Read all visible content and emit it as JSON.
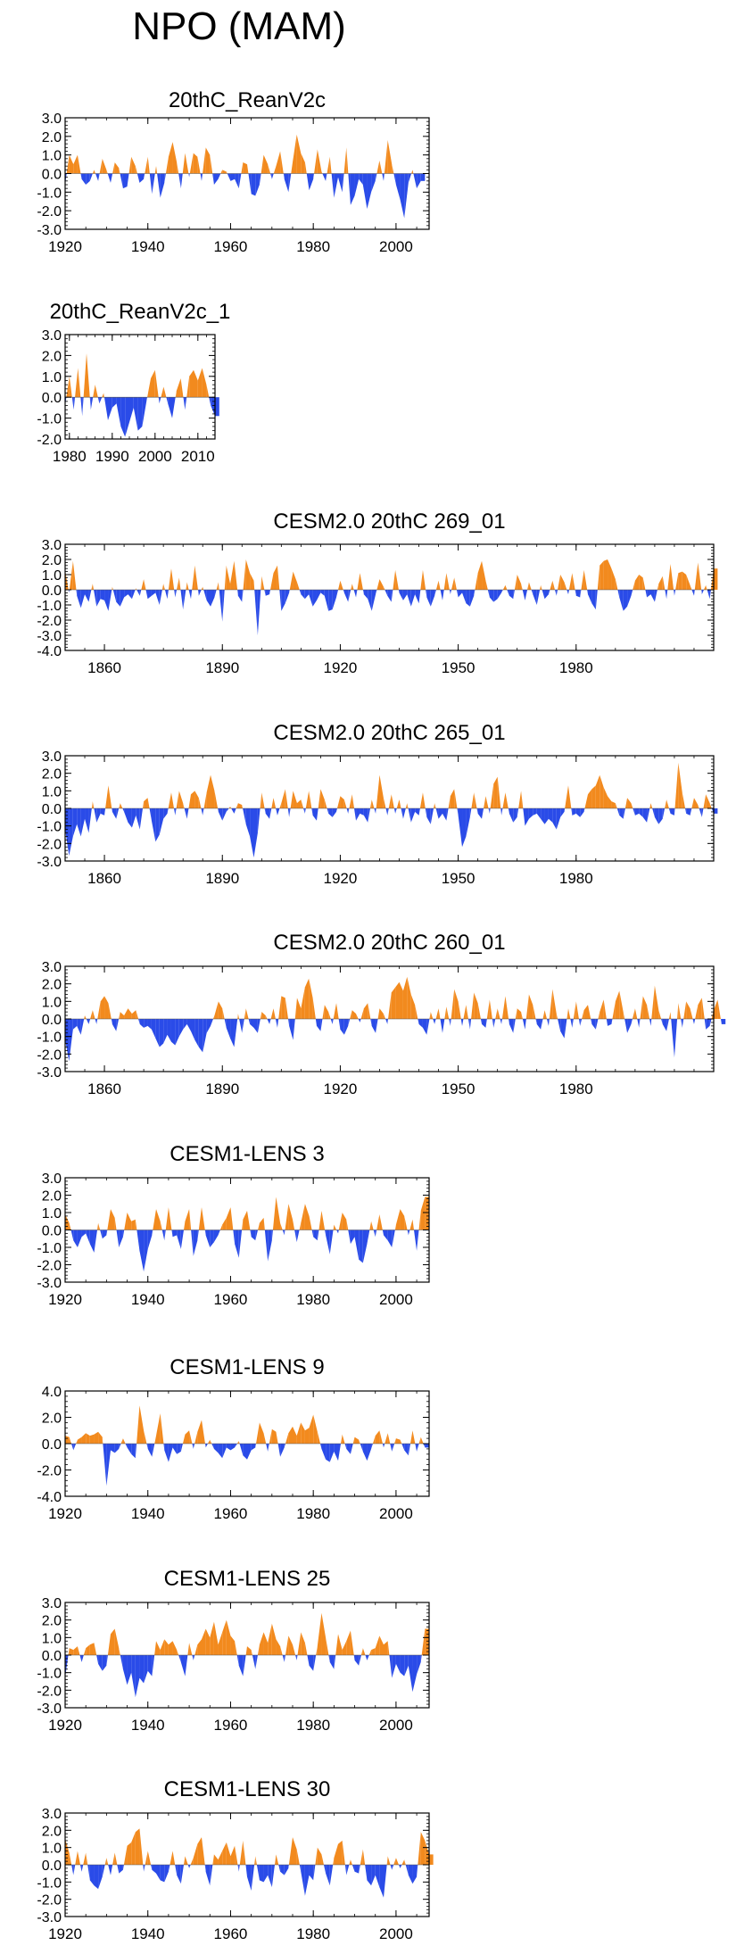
{
  "figure_title": "NPO (MAM)",
  "colors": {
    "positive": "#f28a1e",
    "negative": "#2a4be8",
    "axis": "#000000"
  },
  "chart_data": [
    {
      "type": "area",
      "title": "20thC_ReanV2c",
      "xlim": [
        1920,
        2008
      ],
      "ylim": [
        -3,
        3
      ],
      "yticks": [
        -3,
        -2,
        -1,
        0,
        1,
        2,
        3
      ],
      "ytick_labels": [
        "-3.0",
        "-2.0",
        "-1.0",
        "0.0",
        "1.0",
        "2.0",
        "3.0"
      ],
      "xticks": [
        1920,
        1940,
        1960,
        1980,
        2000
      ],
      "xtick_labels": [
        "1920",
        "1940",
        "1960",
        "1980",
        "2000"
      ],
      "x_start": 1920,
      "values": [
        -0.6,
        1.0,
        0.5,
        1.0,
        -0.3,
        -0.6,
        -0.4,
        0.2,
        -0.4,
        0.8,
        0.2,
        -0.5,
        0.6,
        0.3,
        -0.8,
        -0.7,
        0.9,
        0.4,
        -0.5,
        -0.3,
        0.9,
        -1.1,
        0.4,
        -1.3,
        -0.5,
        0.9,
        1.7,
        0.6,
        -0.8,
        1.1,
        -0.2,
        1.1,
        0.9,
        -0.4,
        1.4,
        1.0,
        -0.6,
        -0.3,
        0.2,
        0.1,
        -0.4,
        -0.3,
        -0.8,
        0.6,
        0.5,
        -1.1,
        -1.2,
        -0.6,
        1.0,
        0.5,
        -0.3,
        0.4,
        1.2,
        -0.3,
        -1.0,
        0.6,
        2.1,
        1.1,
        0.6,
        -0.9,
        -0.3,
        1.3,
        0.1,
        -0.4,
        0.9,
        -1.3,
        -0.2,
        -1.0,
        1.4,
        -1.7,
        -1.2,
        -0.3,
        -0.6,
        -1.9,
        -1.0,
        -0.4,
        0.7,
        -0.4,
        1.8,
        0.5,
        -0.6,
        -1.4,
        -2.4,
        -0.5,
        0.2,
        -0.8,
        -0.4
      ]
    },
    {
      "type": "area",
      "title": "20thC_ReanV2c_1",
      "xlim": [
        1979,
        2014
      ],
      "ylim": [
        -2,
        3
      ],
      "yticks": [
        -2,
        -1,
        0,
        1,
        2,
        3
      ],
      "ytick_labels": [
        "-2.0",
        "-1.0",
        "0.0",
        "1.0",
        "2.0",
        "3.0"
      ],
      "xticks": [
        1980,
        1990,
        2000,
        2010
      ],
      "xtick_labels": [
        "1980",
        "1990",
        "2000",
        "2010"
      ],
      "x_start": 1979,
      "values": [
        -0.4,
        1.0,
        -0.6,
        1.4,
        -0.9,
        2.1,
        -0.6,
        0.6,
        -0.3,
        0.2,
        -1.1,
        -0.5,
        -0.3,
        -1.4,
        -1.9,
        -1.2,
        -0.5,
        -1.6,
        -1.4,
        -0.2,
        0.9,
        1.3,
        -0.3,
        0.5,
        -0.3,
        -1.0,
        0.3,
        0.9,
        -0.6,
        1.0,
        1.3,
        0.8,
        1.4,
        0.6,
        -0.4,
        -0.9
      ]
    },
    {
      "type": "area",
      "title": "CESM2.0 20thC 269_01",
      "xlim": [
        1850,
        2015
      ],
      "ylim": [
        -4,
        3
      ],
      "yticks": [
        -4,
        -3,
        -2,
        -1,
        0,
        1,
        2,
        3
      ],
      "ytick_labels": [
        "-4.0",
        "-3.0",
        "-2.0",
        "-1.0",
        "0.0",
        "1.0",
        "2.0",
        "3.0"
      ],
      "xticks": [
        1860,
        1890,
        1920,
        1950,
        1980
      ],
      "xtick_labels": [
        "1860",
        "1890",
        "1920",
        "1950",
        "1980"
      ],
      "x_start": 1850,
      "values": [
        1.3,
        -0.2,
        1.9,
        -0.4,
        -1.2,
        -0.3,
        -0.8,
        0.4,
        -1.1,
        -0.6,
        -0.7,
        -1.4,
        0.2,
        -0.8,
        -1.1,
        -0.5,
        -0.3,
        -0.6,
        0.1,
        -0.4,
        0.7,
        -0.6,
        -0.4,
        -0.2,
        -1.0,
        0.4,
        -0.6,
        1.4,
        -0.5,
        0.8,
        -1.3,
        0.5,
        -0.6,
        1.6,
        -0.4,
        0.2,
        -0.7,
        -1.1,
        -0.5,
        0.5,
        -2.1,
        1.6,
        0.4,
        1.9,
        -0.4,
        -0.8,
        2.0,
        1.1,
        0.6,
        -3.0,
        0.9,
        -0.4,
        -0.3,
        1.1,
        1.6,
        -1.4,
        -0.9,
        -0.2,
        1.2,
        0.5,
        -0.3,
        -0.6,
        -0.3,
        -1.1,
        -0.7,
        -0.2,
        -0.4,
        -1.4,
        -1.3,
        -0.5,
        0.6,
        -0.2,
        -0.8,
        0.4,
        -0.5,
        1.1,
        -0.3,
        -0.6,
        -1.4,
        -0.3,
        0.7,
        0.2,
        -0.4,
        -0.8,
        1.3,
        -0.2,
        -0.7,
        -0.3,
        -1.1,
        -0.3,
        -0.9,
        1.3,
        -0.5,
        -1.1,
        -0.4,
        0.6,
        -0.7,
        1.1,
        -0.3,
        0.8,
        -0.5,
        -0.2,
        -0.9,
        -1.1,
        -0.4,
        1.1,
        1.9,
        0.6,
        -0.5,
        -0.8,
        -0.6,
        -0.2,
        0.3,
        -0.4,
        -0.6,
        1.0,
        0.4,
        -0.7,
        0.5,
        -0.3,
        -1.0,
        0.3,
        -0.6,
        -0.3,
        0.6,
        -0.4,
        1.0,
        0.5,
        -0.3,
        1.1,
        -0.4,
        -0.5,
        1.3,
        -0.3,
        -0.9,
        -1.3,
        1.6,
        1.9,
        2.0,
        1.4,
        0.7,
        -0.5,
        -1.4,
        -1.1,
        -0.4,
        0.6,
        1.0,
        0.8,
        -0.5,
        -0.3,
        -0.8,
        0.4,
        0.9,
        -0.6,
        1.7,
        -0.4,
        1.1,
        1.2,
        1.0,
        0.3,
        -0.4,
        1.8,
        -0.3,
        0.3,
        -0.6,
        1.4
      ]
    },
    {
      "type": "area",
      "title": "CESM2.0 20thC 265_01",
      "xlim": [
        1850,
        2015
      ],
      "ylim": [
        -3,
        3
      ],
      "yticks": [
        -3,
        -2,
        -1,
        0,
        1,
        2,
        3
      ],
      "ytick_labels": [
        "-3.0",
        "-2.0",
        "-1.0",
        "0.0",
        "1.0",
        "2.0",
        "3.0"
      ],
      "xticks": [
        1860,
        1890,
        1920,
        1950,
        1980
      ],
      "xtick_labels": [
        "1860",
        "1890",
        "1920",
        "1950",
        "1980"
      ],
      "x_start": 1850,
      "values": [
        -1.2,
        -2.7,
        -1.6,
        -0.9,
        -1.6,
        -0.6,
        -1.4,
        0.4,
        -0.8,
        -0.3,
        -0.4,
        1.3,
        -0.2,
        -0.6,
        0.3,
        -0.2,
        -0.8,
        -1.1,
        -0.4,
        -1.2,
        0.4,
        0.6,
        -0.7,
        -1.9,
        -1.5,
        -0.6,
        -0.3,
        0.9,
        -0.4,
        1.0,
        0.3,
        -0.6,
        0.8,
        1.0,
        0.6,
        -0.4,
        0.9,
        1.9,
        1.0,
        -0.2,
        -0.7,
        -0.2,
        0.1,
        -0.3,
        0.3,
        0.2,
        -0.9,
        -1.6,
        -2.8,
        -1.4,
        0.9,
        -0.3,
        -0.6,
        0.6,
        -0.4,
        0.3,
        1.1,
        -0.5,
        1.0,
        0.3,
        0.5,
        -0.3,
        1.0,
        -0.4,
        -0.7,
        1.1,
        0.5,
        -0.3,
        -0.5,
        -0.2,
        0.7,
        0.5,
        -0.3,
        0.8,
        -0.7,
        -0.3,
        -0.4,
        -0.8,
        0.5,
        -0.3,
        1.9,
        0.6,
        -0.4,
        0.8,
        -0.3,
        0.5,
        -0.6,
        0.3,
        -0.8,
        -0.2,
        -0.4,
        0.9,
        -0.5,
        -0.9,
        0.3,
        -0.6,
        -0.3,
        -0.7,
        0.7,
        1.1,
        -0.4,
        -2.2,
        -1.6,
        -0.5,
        0.9,
        -0.3,
        -0.6,
        0.7,
        -0.3,
        1.4,
        1.8,
        -0.4,
        0.9,
        -0.3,
        -0.8,
        -0.5,
        1.0,
        -1.0,
        -0.6,
        -0.4,
        -0.3,
        -0.6,
        -0.9,
        -0.6,
        -0.8,
        -1.2,
        -0.5,
        -0.2,
        1.3,
        -0.4,
        -0.3,
        -0.5,
        -0.2,
        0.8,
        1.1,
        1.3,
        1.9,
        1.2,
        0.7,
        0.4,
        0.3,
        -0.4,
        -0.6,
        0.6,
        0.3,
        -0.4,
        -0.3,
        -0.5,
        -0.8,
        0.3,
        -0.5,
        -0.9,
        -0.6,
        0.5,
        -0.3,
        -0.4,
        2.6,
        0.9,
        -0.3,
        -0.4,
        0.6,
        0.2,
        -0.5,
        0.8,
        0.3,
        -0.3
      ]
    },
    {
      "type": "area",
      "title": "CESM2.0 20thC 260_01",
      "xlim": [
        1850,
        2015
      ],
      "ylim": [
        -3,
        3
      ],
      "yticks": [
        -3,
        -2,
        -1,
        0,
        1,
        2,
        3
      ],
      "ytick_labels": [
        "-3.0",
        "-2.0",
        "-1.0",
        "0.0",
        "1.0",
        "2.0",
        "3.0"
      ],
      "xticks": [
        1860,
        1890,
        1920,
        1950,
        1980
      ],
      "xtick_labels": [
        "1860",
        "1890",
        "1920",
        "1950",
        "1980"
      ],
      "x_start": 1850,
      "values": [
        -1.2,
        -2.4,
        -0.6,
        -0.4,
        -0.9,
        0.2,
        -0.3,
        0.5,
        -0.3,
        1.0,
        1.3,
        0.9,
        -0.3,
        -0.7,
        0.4,
        0.2,
        0.6,
        0.3,
        0.5,
        -0.3,
        -0.5,
        -0.4,
        -0.6,
        -1.1,
        -1.6,
        -1.4,
        -0.9,
        -1.3,
        -1.5,
        -1.0,
        -0.6,
        -0.3,
        -0.7,
        -1.2,
        -1.6,
        -1.9,
        -0.8,
        -0.4,
        0.2,
        1.0,
        0.6,
        -0.5,
        -1.1,
        -1.6,
        0.3,
        -0.8,
        0.6,
        -0.3,
        -0.5,
        -0.8,
        0.4,
        0.2,
        -0.3,
        0.6,
        -0.5,
        1.3,
        1.2,
        -0.4,
        -1.2,
        1.2,
        0.6,
        1.8,
        2.3,
        1.2,
        -0.4,
        -0.7,
        0.8,
        0.4,
        -0.3,
        0.9,
        -0.6,
        -0.9,
        -0.4,
        0.5,
        0.3,
        -0.2,
        0.6,
        0.9,
        -0.4,
        -0.8,
        0.6,
        0.3,
        -0.3,
        1.5,
        1.8,
        2.1,
        1.6,
        2.4,
        1.4,
        0.8,
        -0.3,
        -0.5,
        -0.9,
        0.4,
        -0.3,
        0.6,
        -0.8,
        0.7,
        -0.4,
        1.7,
        1.0,
        -0.4,
        0.8,
        -0.6,
        1.5,
        0.9,
        -0.3,
        -0.5,
        1.1,
        -0.5,
        0.6,
        -0.3,
        1.3,
        -0.3,
        -0.8,
        0.6,
        0.4,
        -0.6,
        1.4,
        0.8,
        -0.3,
        -0.6,
        0.5,
        -0.4,
        1.7,
        0.3,
        -0.7,
        -1.1,
        0.6,
        -0.5,
        1.0,
        -0.4,
        0.5,
        0.8,
        -0.3,
        -0.6,
        0.4,
        1.1,
        -0.4,
        -0.3,
        1.0,
        1.6,
        0.4,
        -0.8,
        -0.3,
        0.6,
        -0.5,
        1.3,
        0.8,
        -0.4,
        1.9,
        0.5,
        -0.3,
        -0.7,
        0.4,
        -2.2,
        0.9,
        -0.5,
        1.0,
        0.6,
        -0.3,
        0.8,
        1.2,
        -0.6,
        -0.4,
        0.5,
        1.1,
        -0.3
      ]
    },
    {
      "type": "area",
      "title": "CESM1-LENS 3",
      "xlim": [
        1920,
        2008
      ],
      "ylim": [
        -3,
        3
      ],
      "yticks": [
        -3,
        -2,
        -1,
        0,
        1,
        2,
        3
      ],
      "ytick_labels": [
        "-3.0",
        "-2.0",
        "-1.0",
        "0.0",
        "1.0",
        "2.0",
        "3.0"
      ],
      "xticks": [
        1920,
        1940,
        1960,
        1980,
        2000
      ],
      "xtick_labels": [
        "1920",
        "1940",
        "1960",
        "1980",
        "2000"
      ],
      "x_start": 1920,
      "values": [
        0.9,
        0.4,
        -0.6,
        -1.0,
        -0.4,
        -0.2,
        -0.8,
        -1.3,
        0.4,
        -0.5,
        -0.3,
        1.2,
        0.7,
        -1.0,
        -0.4,
        1.0,
        0.5,
        0.6,
        -1.2,
        -2.4,
        -1.1,
        -0.3,
        1.2,
        0.5,
        -0.6,
        1.3,
        -0.4,
        -0.3,
        -1.1,
        0.5,
        1.2,
        -1.5,
        -0.6,
        1.3,
        -0.3,
        -1.0,
        -0.7,
        -0.3,
        0.3,
        0.7,
        1.3,
        -0.8,
        -1.6,
        0.6,
        1.1,
        -0.4,
        -0.6,
        0.4,
        0.7,
        -1.8,
        -0.6,
        1.9,
        0.4,
        -0.3,
        1.5,
        0.6,
        -0.7,
        0.4,
        1.5,
        0.8,
        -0.4,
        -0.6,
        1.1,
        -0.3,
        -1.4,
        0.3,
        -0.2,
        1.0,
        0.6,
        -0.8,
        -0.4,
        -1.7,
        -1.9,
        -0.8,
        0.5,
        -0.4,
        0.9,
        -0.3,
        -0.6,
        -1.0,
        0.3,
        1.2,
        0.8,
        -0.3,
        0.6,
        -1.2,
        1.1,
        1.9
      ]
    },
    {
      "type": "area",
      "title": "CESM1-LENS 9",
      "xlim": [
        1920,
        2008
      ],
      "ylim": [
        -4,
        4
      ],
      "yticks": [
        -4,
        -2,
        0,
        2,
        4
      ],
      "ytick_labels": [
        "-4.0",
        "-2.0",
        "0.0",
        "2.0",
        "4.0"
      ],
      "xticks": [
        1920,
        1940,
        1960,
        1980,
        2000
      ],
      "xtick_labels": [
        "1920",
        "1940",
        "1960",
        "1980",
        "2000"
      ],
      "x_start": 1920,
      "values": [
        0.6,
        0.5,
        -0.5,
        0.3,
        0.5,
        0.8,
        0.6,
        0.7,
        0.9,
        0.5,
        -3.2,
        -0.5,
        -0.7,
        -0.4,
        0.4,
        -0.3,
        -0.8,
        -1.1,
        2.9,
        1.0,
        -0.4,
        -1.0,
        0.6,
        2.3,
        -0.5,
        -1.4,
        -0.3,
        -0.8,
        -0.6,
        0.7,
        1.0,
        -0.4,
        0.9,
        1.8,
        -0.3,
        0.3,
        -0.4,
        -0.7,
        -1.1,
        -0.3,
        -0.5,
        -0.3,
        0.2,
        -0.9,
        -1.2,
        -0.5,
        -0.3,
        1.6,
        0.8,
        -0.6,
        1.1,
        0.9,
        -1.0,
        -0.3,
        0.8,
        1.3,
        0.6,
        1.6,
        1.0,
        1.2,
        2.2,
        0.9,
        -0.4,
        -1.2,
        -1.4,
        -0.6,
        -1.3,
        0.7,
        -0.4,
        -0.8,
        0.5,
        0.3,
        -0.6,
        -1.3,
        -0.4,
        0.6,
        1.0,
        -0.3,
        0.8,
        -0.6,
        0.4,
        0.3,
        -0.5,
        -0.9,
        1.0,
        -0.6,
        0.5,
        -0.3
      ]
    },
    {
      "type": "area",
      "title": "CESM1-LENS 25",
      "xlim": [
        1920,
        2008
      ],
      "ylim": [
        -3,
        3
      ],
      "yticks": [
        -3,
        -2,
        -1,
        0,
        1,
        2,
        3
      ],
      "ytick_labels": [
        "-3.0",
        "-2.0",
        "-1.0",
        "0.0",
        "1.0",
        "2.0",
        "3.0"
      ],
      "xticks": [
        1920,
        1940,
        1960,
        1980,
        2000
      ],
      "xtick_labels": [
        "1920",
        "1940",
        "1960",
        "1980",
        "2000"
      ],
      "x_start": 1920,
      "values": [
        -1.3,
        0.4,
        0.3,
        0.5,
        -0.4,
        0.4,
        0.6,
        0.7,
        -0.5,
        -0.9,
        -0.6,
        1.2,
        1.5,
        0.4,
        -0.8,
        -1.7,
        -1.0,
        -2.4,
        -1.3,
        -1.6,
        -0.9,
        -1.2,
        0.8,
        0.3,
        0.9,
        0.6,
        0.8,
        0.3,
        -0.4,
        -1.2,
        0.7,
        -0.3,
        0.6,
        0.9,
        1.5,
        1.0,
        1.9,
        0.6,
        1.3,
        2.0,
        1.1,
        0.8,
        -0.6,
        -1.2,
        0.5,
        0.3,
        -0.8,
        0.6,
        1.3,
        0.7,
        1.8,
        0.9,
        0.5,
        -0.4,
        1.1,
        0.6,
        -0.3,
        1.3,
        0.7,
        -0.6,
        -0.9,
        0.5,
        2.4,
        1.0,
        -0.4,
        -0.8,
        1.2,
        0.3,
        0.8,
        1.4,
        -0.3,
        -0.6,
        0.4,
        -0.3,
        0.3,
        0.4,
        1.1,
        0.6,
        0.8,
        -1.3,
        -0.5,
        -1.0,
        -1.2,
        -0.6,
        -2.1,
        -1.1,
        -0.4,
        1.5
      ]
    },
    {
      "type": "area",
      "title": "CESM1-LENS 30",
      "xlim": [
        1920,
        2008
      ],
      "ylim": [
        -3,
        3
      ],
      "yticks": [
        -3,
        -2,
        -1,
        0,
        1,
        2,
        3
      ],
      "ytick_labels": [
        "-3.0",
        "-2.0",
        "-1.0",
        "0.0",
        "1.0",
        "2.0",
        "3.0"
      ],
      "xticks": [
        1920,
        1940,
        1960,
        1980,
        2000
      ],
      "xtick_labels": [
        "1920",
        "1940",
        "1960",
        "1980",
        "2000"
      ],
      "x_start": 1920,
      "values": [
        1.5,
        0.7,
        -0.6,
        0.8,
        -0.4,
        0.7,
        -0.9,
        -1.2,
        -1.4,
        -0.7,
        0.4,
        -0.6,
        0.7,
        -0.5,
        -0.3,
        1.1,
        1.3,
        1.9,
        2.1,
        -0.4,
        0.8,
        -0.3,
        -0.5,
        -0.9,
        -1.0,
        -0.4,
        0.8,
        -0.6,
        -1.1,
        0.5,
        -0.2,
        0.4,
        1.2,
        1.6,
        -0.4,
        -1.2,
        0.6,
        0.3,
        0.8,
        1.3,
        0.5,
        1.1,
        -0.4,
        1.4,
        -0.7,
        -1.5,
        0.5,
        -0.9,
        -1.0,
        -0.6,
        -1.3,
        0.6,
        -0.4,
        -0.6,
        -0.2,
        1.6,
        0.9,
        -0.4,
        -1.8,
        -0.6,
        -0.9,
        1.0,
        0.6,
        -0.5,
        -1.2,
        0.4,
        1.2,
        1.4,
        -0.6,
        0.3,
        -0.4,
        -0.5,
        0.9,
        -0.9,
        -1.2,
        -0.6,
        -1.3,
        -1.9,
        0.5,
        -0.3,
        0.4,
        -0.2,
        0.3,
        -0.6,
        -1.1,
        -0.7,
        1.9,
        1.4,
        0.6
      ]
    }
  ]
}
